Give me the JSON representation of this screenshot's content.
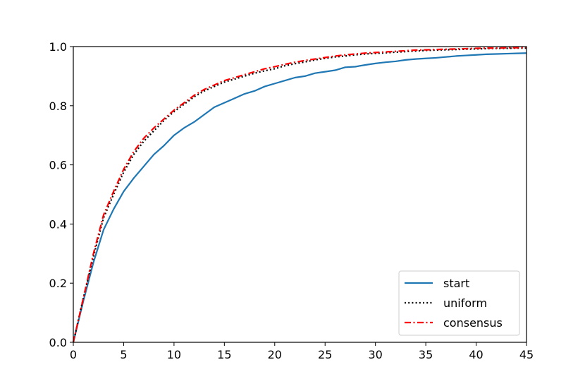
{
  "chart_data": {
    "type": "line",
    "title": "",
    "xlabel": "",
    "ylabel": "",
    "xlim": [
      0,
      45
    ],
    "ylim": [
      0.0,
      1.0
    ],
    "grid": false,
    "legend_position": "bottom-right",
    "x_ticks": [
      "0",
      "5",
      "10",
      "15",
      "20",
      "25",
      "30",
      "35",
      "40",
      "45"
    ],
    "y_ticks": [
      "0.0",
      "0.2",
      "0.4",
      "0.6",
      "0.8",
      "1.0"
    ],
    "x": [
      0,
      1,
      2,
      3,
      4,
      5,
      6,
      7,
      8,
      9,
      10,
      11,
      12,
      13,
      14,
      15,
      16,
      17,
      18,
      19,
      20,
      21,
      22,
      23,
      24,
      25,
      26,
      27,
      28,
      29,
      30,
      31,
      32,
      33,
      34,
      35,
      36,
      37,
      38,
      39,
      40,
      41,
      42,
      43,
      44,
      45
    ],
    "series": [
      {
        "name": "start",
        "color": "#1f77b4",
        "style": "solid",
        "values": [
          0.0,
          0.14,
          0.27,
          0.38,
          0.45,
          0.51,
          0.555,
          0.595,
          0.635,
          0.665,
          0.7,
          0.725,
          0.745,
          0.77,
          0.795,
          0.81,
          0.825,
          0.84,
          0.85,
          0.865,
          0.875,
          0.885,
          0.895,
          0.9,
          0.91,
          0.915,
          0.92,
          0.93,
          0.932,
          0.938,
          0.943,
          0.947,
          0.95,
          0.955,
          0.958,
          0.96,
          0.962,
          0.965,
          0.968,
          0.97,
          0.972,
          0.974,
          0.975,
          0.976,
          0.977,
          0.978
        ]
      },
      {
        "name": "uniform",
        "color": "#000000",
        "style": "dotted",
        "values": [
          0.0,
          0.15,
          0.29,
          0.42,
          0.5,
          0.575,
          0.635,
          0.68,
          0.715,
          0.75,
          0.78,
          0.805,
          0.83,
          0.85,
          0.865,
          0.88,
          0.89,
          0.9,
          0.91,
          0.918,
          0.925,
          0.935,
          0.942,
          0.948,
          0.955,
          0.96,
          0.965,
          0.968,
          0.972,
          0.975,
          0.977,
          0.979,
          0.981,
          0.983,
          0.985,
          0.987,
          0.988,
          0.989,
          0.99,
          0.991,
          0.992,
          0.993,
          0.994,
          0.994,
          0.995,
          0.995
        ]
      },
      {
        "name": "consensus",
        "color": "#ff0000",
        "style": "dashdot",
        "values": [
          0.0,
          0.15,
          0.3,
          0.43,
          0.51,
          0.585,
          0.645,
          0.69,
          0.725,
          0.755,
          0.785,
          0.81,
          0.835,
          0.855,
          0.87,
          0.885,
          0.895,
          0.905,
          0.915,
          0.925,
          0.932,
          0.94,
          0.947,
          0.953,
          0.958,
          0.963,
          0.968,
          0.972,
          0.975,
          0.978,
          0.98,
          0.982,
          0.984,
          0.986,
          0.988,
          0.989,
          0.99,
          0.991,
          0.992,
          0.993,
          0.994,
          0.995,
          0.995,
          0.996,
          0.996,
          0.997
        ]
      }
    ]
  }
}
